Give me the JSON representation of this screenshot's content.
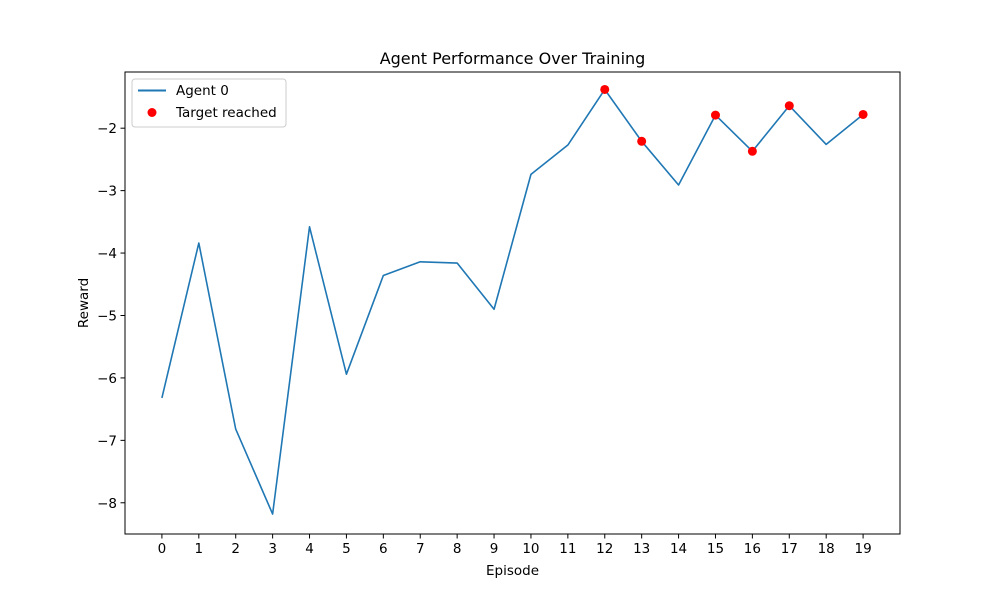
{
  "chart_data": {
    "type": "line",
    "title": "Agent Performance Over Training",
    "xlabel": "Episode",
    "ylabel": "Reward",
    "x": [
      0,
      1,
      2,
      3,
      4,
      5,
      6,
      7,
      8,
      9,
      10,
      11,
      12,
      13,
      14,
      15,
      16,
      17,
      18,
      19
    ],
    "xlim": [
      -1,
      20
    ],
    "ylim": [
      -8.5,
      -1.1
    ],
    "xticks": [
      0,
      1,
      2,
      3,
      4,
      5,
      6,
      7,
      8,
      9,
      10,
      11,
      12,
      13,
      14,
      15,
      16,
      17,
      18,
      19
    ],
    "yticks": [
      -8,
      -7,
      -6,
      -5,
      -4,
      -3,
      -2
    ],
    "ytick_labels": [
      "−8",
      "−7",
      "−6",
      "−5",
      "−4",
      "−3",
      "−2"
    ],
    "series": [
      {
        "name": "Agent 0",
        "kind": "line",
        "color": "#1f77b4",
        "values": [
          -6.32,
          -3.84,
          -6.82,
          -8.18,
          -3.58,
          -5.94,
          -4.36,
          -4.14,
          -4.16,
          -4.9,
          -2.74,
          -2.27,
          -1.38,
          -2.21,
          -2.91,
          -1.79,
          -2.37,
          -1.64,
          -2.26,
          -1.78
        ]
      },
      {
        "name": "Target reached",
        "kind": "scatter",
        "color": "#ff0000",
        "points": [
          {
            "x": 12,
            "y": -1.38
          },
          {
            "x": 13,
            "y": -2.21
          },
          {
            "x": 15,
            "y": -1.79
          },
          {
            "x": 16,
            "y": -2.37
          },
          {
            "x": 17,
            "y": -1.64
          },
          {
            "x": 19,
            "y": -1.78
          }
        ]
      }
    ],
    "legend": {
      "placement": "upper-left",
      "entries": [
        "Agent 0",
        "Target reached"
      ]
    },
    "grid": false
  }
}
